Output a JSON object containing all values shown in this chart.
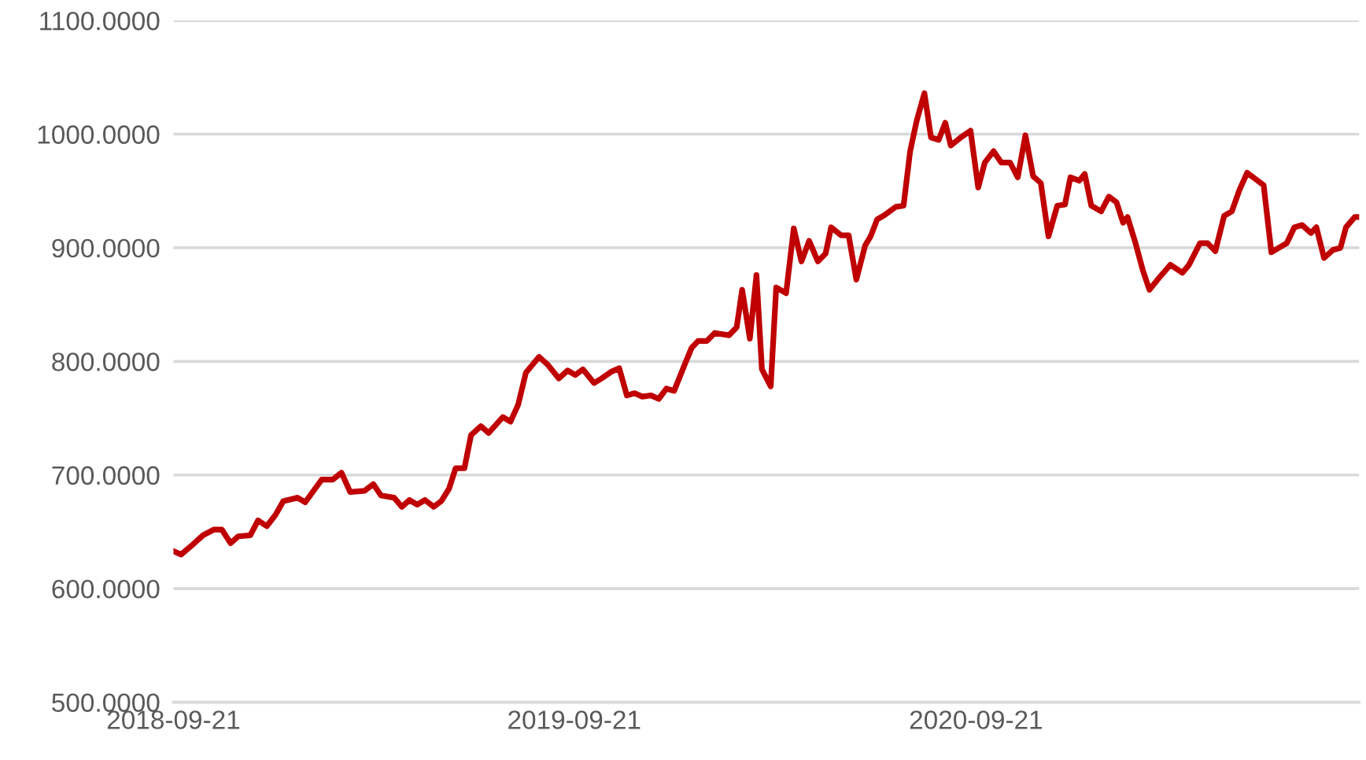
{
  "chart_data": {
    "type": "line",
    "x": [
      "2018-09-21",
      "2018-09-28",
      "2018-10-10",
      "2018-10-18",
      "2018-10-28",
      "2018-11-04",
      "2018-11-12",
      "2018-11-19",
      "2018-11-30",
      "2018-12-07",
      "2018-12-15",
      "2018-12-23",
      "2018-12-30",
      "2019-01-12",
      "2019-01-19",
      "2019-02-03",
      "2019-02-13",
      "2019-02-21",
      "2019-03-01",
      "2019-03-14",
      "2019-03-22",
      "2019-03-29",
      "2019-04-10",
      "2019-04-17",
      "2019-04-24",
      "2019-05-01",
      "2019-05-08",
      "2019-05-16",
      "2019-05-23",
      "2019-05-30",
      "2019-06-05",
      "2019-06-13",
      "2019-06-19",
      "2019-06-28",
      "2019-07-05",
      "2019-07-18",
      "2019-07-25",
      "2019-08-01",
      "2019-08-08",
      "2019-08-20",
      "2019-08-28",
      "2019-09-07",
      "2019-09-15",
      "2019-09-22",
      "2019-09-29",
      "2019-10-09",
      "2019-10-16",
      "2019-10-25",
      "2019-11-01",
      "2019-11-08",
      "2019-11-15",
      "2019-11-22",
      "2019-11-30",
      "2019-12-07",
      "2019-12-14",
      "2019-12-21",
      "2019-12-31",
      "2020-01-06",
      "2020-01-12",
      "2020-01-20",
      "2020-01-27",
      "2020-02-09",
      "2020-02-16",
      "2020-02-21",
      "2020-02-28",
      "2020-03-05",
      "2020-03-10",
      "2020-03-18",
      "2020-03-23",
      "2020-04-01",
      "2020-04-08",
      "2020-04-15",
      "2020-04-22",
      "2020-04-30",
      "2020-05-07",
      "2020-05-12",
      "2020-05-21",
      "2020-05-28",
      "2020-06-04",
      "2020-06-12",
      "2020-06-17",
      "2020-06-23",
      "2020-06-30",
      "2020-07-10",
      "2020-07-17",
      "2020-07-23",
      "2020-07-29",
      "2020-08-05",
      "2020-08-11",
      "2020-08-18",
      "2020-08-24",
      "2020-08-29",
      "2020-09-07",
      "2020-09-16",
      "2020-09-23",
      "2020-09-29",
      "2020-10-07",
      "2020-10-14",
      "2020-10-22",
      "2020-10-29",
      "2020-11-05",
      "2020-11-12",
      "2020-11-19",
      "2020-11-26",
      "2020-12-04",
      "2020-12-11",
      "2020-12-16",
      "2020-12-24",
      "2020-12-29",
      "2021-01-04",
      "2021-01-13",
      "2021-01-20",
      "2021-01-27",
      "2021-02-02",
      "2021-02-06",
      "2021-02-13",
      "2021-02-20",
      "2021-02-26",
      "2021-03-08",
      "2021-03-17",
      "2021-03-28",
      "2021-04-03",
      "2021-04-13",
      "2021-04-20",
      "2021-04-27",
      "2021-05-05",
      "2021-05-12",
      "2021-05-19",
      "2021-05-26",
      "2021-06-10",
      "2021-06-17",
      "2021-06-24",
      "2021-07-01",
      "2021-07-08",
      "2021-07-15",
      "2021-07-23",
      "2021-07-28",
      "2021-08-04",
      "2021-08-12",
      "2021-08-19",
      "2021-08-24",
      "2021-09-01",
      "2021-09-05"
    ],
    "series": [
      {
        "color": "#c00000",
        "values": [
          633,
          630,
          640,
          647,
          652,
          652,
          640,
          646,
          647,
          660,
          655,
          665,
          677,
          680,
          676,
          696,
          696,
          702,
          685,
          686,
          692,
          682,
          680,
          672,
          678,
          674,
          678,
          672,
          677,
          688,
          706,
          706,
          735,
          743,
          737,
          751,
          747,
          762,
          790,
          804,
          797,
          785,
          792,
          788,
          793,
          781,
          785,
          791,
          794,
          770,
          772,
          769,
          770,
          767,
          776,
          774,
          798,
          812,
          818,
          818,
          825,
          823,
          830,
          863,
          820,
          876,
          793,
          778,
          865,
          860,
          917,
          888,
          906,
          888,
          895,
          918,
          911,
          911,
          872,
          902,
          910,
          925,
          929,
          936,
          937,
          985,
          1012,
          1036,
          997,
          995,
          1010,
          990,
          997,
          1003,
          953,
          975,
          985,
          975,
          975,
          962,
          999,
          963,
          957,
          910,
          937,
          938,
          962,
          959,
          965,
          937,
          932,
          945,
          940,
          922,
          927,
          905,
          880,
          863,
          875,
          885,
          878,
          885,
          904,
          904,
          897,
          928,
          932,
          951,
          966,
          955,
          896,
          900,
          904,
          918,
          920,
          913,
          918,
          891,
          898,
          900,
          918,
          927,
          927
        ]
      }
    ],
    "xlim": [
      "2018-09-21",
      "2021-09-05"
    ],
    "xticks": [
      {
        "value": "2018-09-21",
        "label": "2018-09-21"
      },
      {
        "value": "2019-09-21",
        "label": "2019-09-21"
      },
      {
        "value": "2020-09-21",
        "label": "2020-09-21"
      }
    ],
    "ylim": [
      500,
      1100
    ],
    "yticks": [
      {
        "value": 500,
        "label": "500.0000"
      },
      {
        "value": 600,
        "label": "600.0000"
      },
      {
        "value": 700,
        "label": "700.0000"
      },
      {
        "value": 800,
        "label": "800.0000"
      },
      {
        "value": 900,
        "label": "900.0000"
      },
      {
        "value": 1000,
        "label": "1000.0000"
      },
      {
        "value": 1100,
        "label": "1100.0000"
      }
    ],
    "grid": "y",
    "marker": "none",
    "line_style": "solid"
  }
}
